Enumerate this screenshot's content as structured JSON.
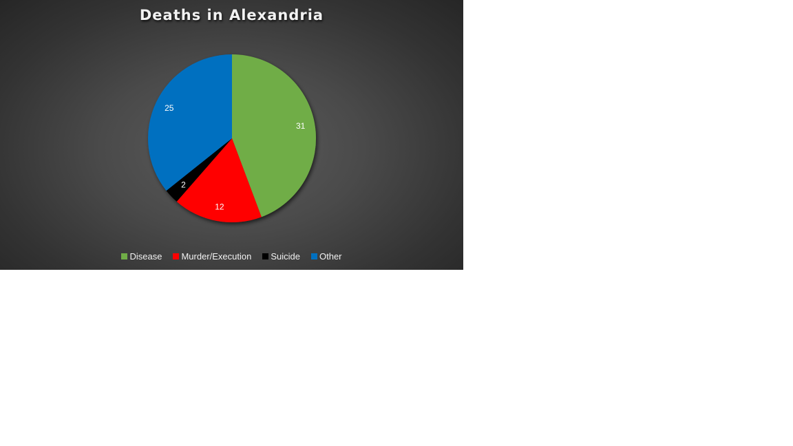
{
  "chart_data": {
    "type": "pie",
    "title": "Deaths in Alexandria",
    "categories": [
      "Disease",
      "Murder/Execution",
      "Suicide",
      "Other"
    ],
    "values": [
      31,
      12,
      2,
      25
    ],
    "colors": [
      "#70ad47",
      "#ff0000",
      "#000000",
      "#0070c0"
    ],
    "data_labels": [
      "31",
      "12",
      "2",
      "25"
    ],
    "legend_position": "bottom"
  }
}
